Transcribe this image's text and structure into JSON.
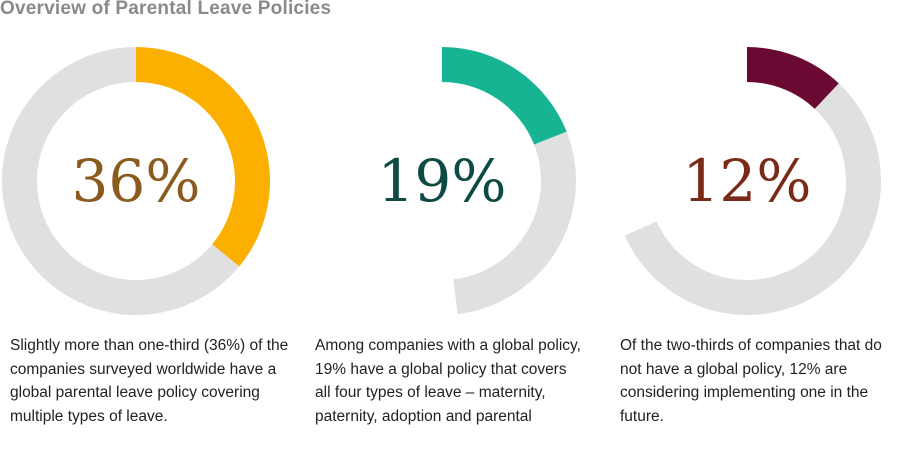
{
  "title": "Overview of Parental Leave Policies",
  "colors": {
    "track": "#e0e0e0",
    "accents": [
      "#fbb000",
      "#17b493",
      "#6a0a32"
    ],
    "labels": [
      "#8a5a1e",
      "#0e4a44",
      "#7a2a18"
    ]
  },
  "chart_data": [
    {
      "type": "pie",
      "style": "donut",
      "label": "36%",
      "value": 36,
      "remainder_track_sweep_percent": 100,
      "caption": "Slightly more than one-third (36%) of the companies surveyed worldwide have a global parental leave policy covering multiple types of leave."
    },
    {
      "type": "pie",
      "style": "donut",
      "label": "19%",
      "value": 19,
      "remainder_track_sweep_percent": 36,
      "caption": "Among companies with a global policy, 19% have a global policy that covers all four types of leave – maternity, paternity, adoption and parental"
    },
    {
      "type": "pie",
      "style": "donut",
      "label": "12%",
      "value": 12,
      "remainder_track_sweep_percent": 64,
      "caption": "Of the two-thirds of companies that do not have a global policy, 12% are considering implementing one in the future."
    }
  ]
}
